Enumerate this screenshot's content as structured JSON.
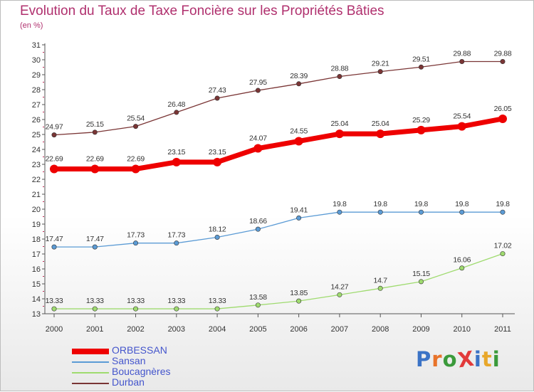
{
  "title": "Evolution du Taux de Taxe Foncière sur les Propriétés Bâties",
  "unit": "(en %)",
  "logo": {
    "text": "ProXiti",
    "letter_colors": [
      "#3b73c6",
      "#e8732a",
      "#3b9a3b",
      "#e23a3a",
      "#3b73c6",
      "#e8a72a",
      "#3b9a3b"
    ]
  },
  "chart_data": {
    "type": "line",
    "title": "Evolution du Taux de Taxe Foncière sur les Propriétés Bâties",
    "ylabel": "(en %)",
    "xlabel": "",
    "x": [
      "2000",
      "2001",
      "2002",
      "2003",
      "2004",
      "2005",
      "2006",
      "2007",
      "2008",
      "2009",
      "2010",
      "2011"
    ],
    "ylim": [
      13,
      31
    ],
    "yticks": [
      13,
      14,
      15,
      16,
      17,
      18,
      19,
      20,
      21,
      22,
      23,
      24,
      25,
      26,
      27,
      28,
      29,
      30,
      31
    ],
    "grid": false,
    "legend_position": "bottom-left",
    "series": [
      {
        "name": "ORBESSAN",
        "color": "#ee0000",
        "emphasis": true,
        "values": [
          22.69,
          22.69,
          22.69,
          23.15,
          23.15,
          24.07,
          24.55,
          25.04,
          25.04,
          25.29,
          25.54,
          26.05
        ],
        "labels": [
          "22.69",
          "22.69",
          "22.69",
          "23.15",
          "23.15",
          "24.07",
          "24.55",
          "25.04",
          "25.04",
          "25.29",
          "25.54",
          "26.05"
        ]
      },
      {
        "name": "Sansan",
        "color": "#5b9bd5",
        "emphasis": false,
        "values": [
          17.47,
          17.47,
          17.73,
          17.73,
          18.12,
          18.66,
          19.41,
          19.8,
          19.8,
          19.8,
          19.8,
          19.8
        ],
        "labels": [
          "17.47",
          "17.47",
          "17.73",
          "17.73",
          "18.12",
          "18.66",
          "19.41",
          "19.8",
          "19.8",
          "19.8",
          "19.8",
          "19.8"
        ]
      },
      {
        "name": "Boucagnères",
        "color": "#9fdb6f",
        "emphasis": false,
        "values": [
          13.33,
          13.33,
          13.33,
          13.33,
          13.33,
          13.58,
          13.85,
          14.27,
          14.7,
          15.15,
          16.06,
          17.02
        ],
        "labels": [
          "13.33",
          "13.33",
          "13.33",
          "13.33",
          "13.33",
          "13.58",
          "13.85",
          "14.27",
          "14.7",
          "15.15",
          "16.06",
          "17.02"
        ]
      },
      {
        "name": "Durban",
        "color": "#7a3535",
        "emphasis": false,
        "values": [
          24.97,
          25.15,
          25.54,
          26.48,
          27.43,
          27.95,
          28.39,
          28.88,
          29.21,
          29.51,
          29.88,
          29.88
        ],
        "labels": [
          "24.97",
          "25.15",
          "25.54",
          "26.48",
          "27.43",
          "27.95",
          "28.39",
          "28.88",
          "29.21",
          "29.51",
          "29.88",
          "29.88"
        ]
      }
    ]
  }
}
